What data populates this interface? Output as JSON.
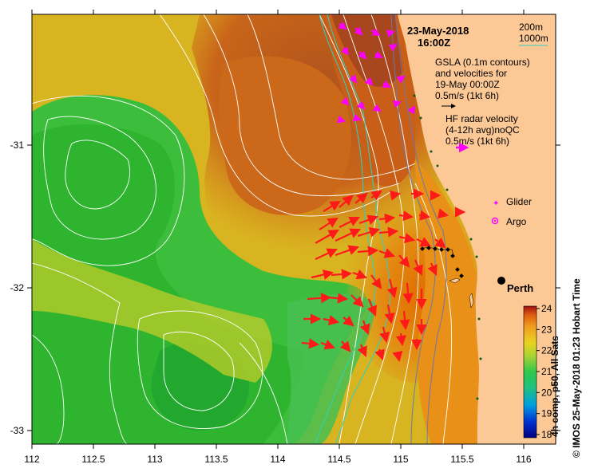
{
  "map": {
    "date": "23-May-2018",
    "time": "16:00Z",
    "legend": {
      "depth_200": "200m",
      "depth_1000": "1000m",
      "gsla_line1": "GSLA (0.1m contours)",
      "gsla_line2": "and velocities for",
      "gsla_line3": "19-May 00:00Z",
      "gsla_scale": "0.5m/s (1kt 6h)",
      "hf_line1": "HF radar velocity",
      "hf_line2": "(4-12h avg)noQC",
      "hf_scale": "0.5m/s (1kt 6h)",
      "glider": "Glider",
      "argo": "Argo"
    },
    "city": "Perth",
    "x_ticks": [
      "112",
      "112.5",
      "113",
      "113.5",
      "114",
      "114.5",
      "115",
      "115.5",
      "116"
    ],
    "y_ticks": [
      "-31",
      "-32",
      "-33"
    ],
    "colorbar": {
      "ticks": [
        "24",
        "23",
        "22",
        "21",
        "20",
        "19",
        "18"
      ],
      "label": "4h comp, p50, All Sats"
    },
    "credit": "© IMOS 25-May-2018 01:23 Hobart Time",
    "colors": {
      "land": "#fcc896",
      "hf_vector": "#ff1a1a",
      "gsla_vector": "#ff00ff",
      "depth_200": "#6a7aa8",
      "depth_1000": "#2ad2c4"
    }
  }
}
